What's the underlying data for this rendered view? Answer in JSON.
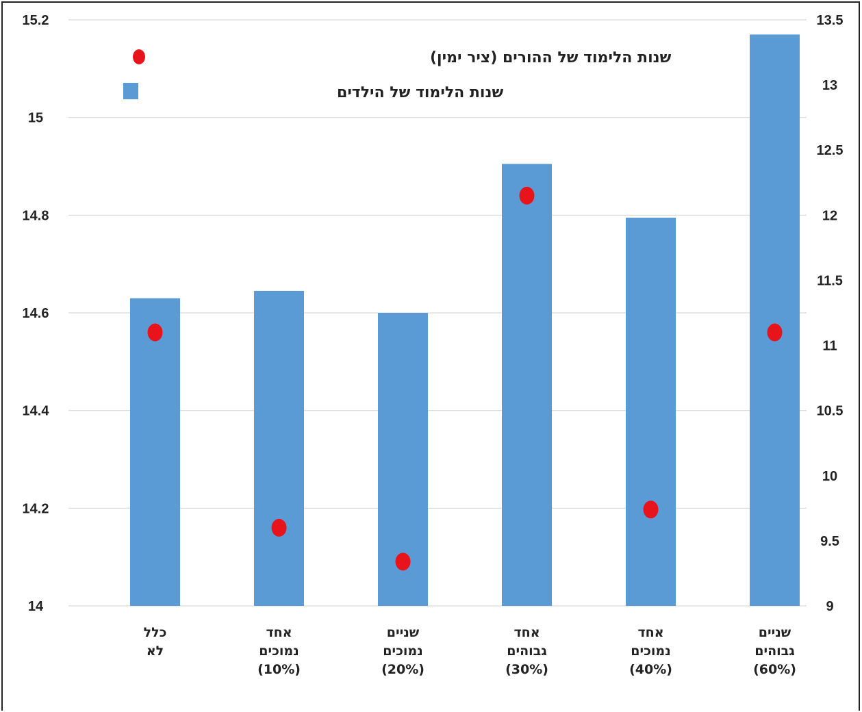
{
  "chart_data": {
    "type": "bar",
    "categories": [
      [
        "כלל",
        "לא"
      ],
      [
        "אחד",
        "נמוכים",
        "(10%)"
      ],
      [
        "שניים",
        "נמוכים",
        "(20%)"
      ],
      [
        "אחד",
        "גבוהים",
        "(30%)"
      ],
      [
        "אחד",
        "נמוכים",
        "(40%)"
      ],
      [
        "שניים",
        "גבוהים",
        "(60%)"
      ]
    ],
    "series": [
      {
        "name": "שנות הלימוד של הילדים",
        "kind": "bar",
        "axis": "left",
        "color": "#5B9BD5",
        "values": [
          14.63,
          14.645,
          14.6,
          14.905,
          14.795,
          15.17
        ]
      },
      {
        "name": "שנות הלימוד של ההורים (ציר ימין)",
        "kind": "dot",
        "axis": "right",
        "color": "#E8141C",
        "values": [
          11.1,
          9.6,
          9.34,
          12.15,
          9.74,
          11.1
        ]
      }
    ],
    "left_axis": {
      "min": 14,
      "max": 15.2,
      "ticks": [
        "15.2",
        "15",
        "14.8",
        "14.6",
        "14.4",
        "14.2",
        "14"
      ]
    },
    "right_axis": {
      "min": 9,
      "max": 13.5,
      "ticks": [
        "13.5",
        "13",
        "12.5",
        "12",
        "11.5",
        "11",
        "10.5",
        "10",
        "9.5",
        "9"
      ]
    },
    "grid": true,
    "legend_position": "top-left"
  }
}
